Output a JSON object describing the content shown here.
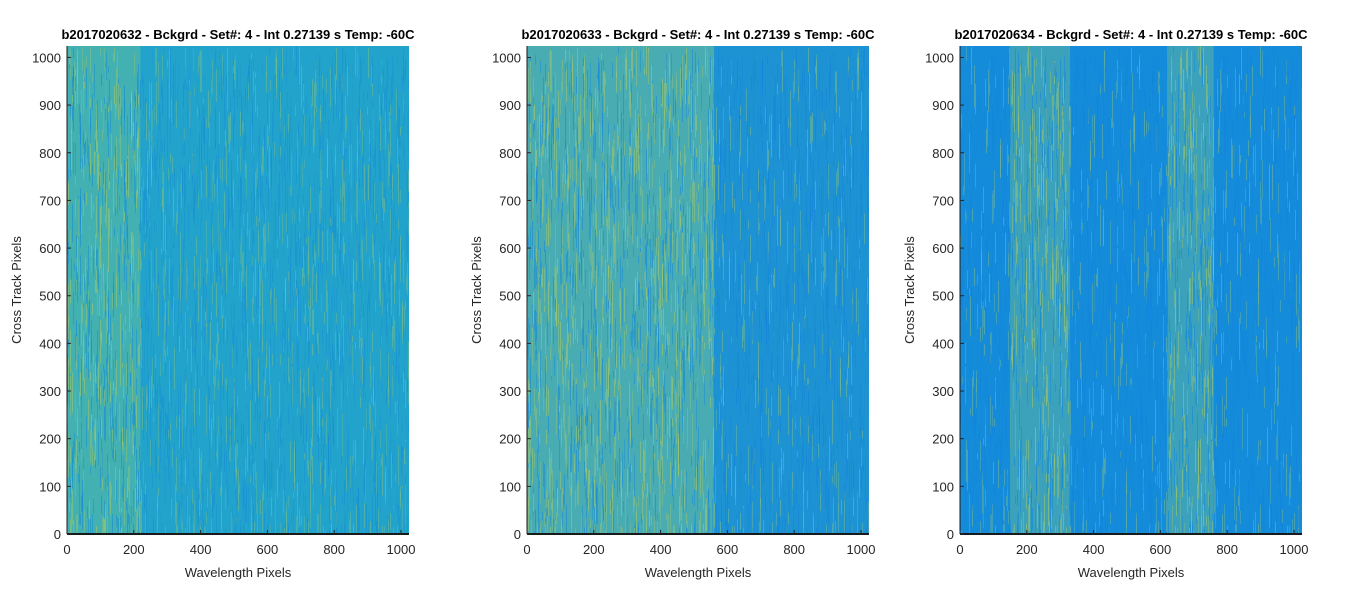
{
  "chart_data": [
    {
      "type": "heatmap",
      "title": "b2017020632 - Bckgrd - Set#: 4 - Int 0.27139 s Temp: -60C",
      "xlabel": "Wavelength Pixels",
      "ylabel": "Cross Track Pixels",
      "xlim": [
        0,
        1024
      ],
      "ylim": [
        0,
        1024
      ],
      "xticks": [
        0,
        200,
        400,
        600,
        800,
        1000
      ],
      "yticks": [
        0,
        100,
        200,
        300,
        400,
        500,
        600,
        700,
        800,
        900,
        1000
      ],
      "colormap": "parula",
      "colors": {
        "base": "#23a8c9",
        "bright": "#b5ce5a",
        "dark": "#0f7fdc"
      },
      "bands": [
        {
          "x_range": [
            0,
            220
          ],
          "level": "brighter"
        },
        {
          "x_range": [
            220,
            1024
          ],
          "level": "medium"
        }
      ]
    },
    {
      "type": "heatmap",
      "title": "b2017020633 - Bckgrd - Set#: 4 - Int 0.27139 s Temp: -60C",
      "xlabel": "Wavelength Pixels",
      "ylabel": "Cross Track Pixels",
      "xlim": [
        0,
        1024
      ],
      "ylim": [
        0,
        1024
      ],
      "xticks": [
        0,
        200,
        400,
        600,
        800,
        1000
      ],
      "yticks": [
        0,
        100,
        200,
        300,
        400,
        500,
        600,
        700,
        800,
        900,
        1000
      ],
      "colormap": "parula",
      "colors": {
        "base": "#2aa3cc",
        "bright": "#b5ce5a",
        "dark": "#0f7fdc"
      },
      "bands": [
        {
          "x_range": [
            0,
            560
          ],
          "level": "brighter"
        },
        {
          "x_range": [
            560,
            1024
          ],
          "level": "darker"
        }
      ]
    },
    {
      "type": "heatmap",
      "title": "b2017020634 - Bckgrd - Set#: 4 - Int 0.27139 s Temp: -60C",
      "xlabel": "Wavelength Pixels",
      "ylabel": "Cross Track Pixels",
      "xlim": [
        0,
        1024
      ],
      "ylim": [
        0,
        1024
      ],
      "xticks": [
        0,
        200,
        400,
        600,
        800,
        1000
      ],
      "yticks": [
        0,
        100,
        200,
        300,
        400,
        500,
        600,
        700,
        800,
        900,
        1000
      ],
      "colormap": "parula",
      "colors": {
        "base": "#1a96d8",
        "bright": "#b5ce5a",
        "dark": "#0f7fdc"
      },
      "bands": [
        {
          "x_range": [
            0,
            150
          ],
          "level": "darker"
        },
        {
          "x_range": [
            150,
            330
          ],
          "level": "brighter"
        },
        {
          "x_range": [
            330,
            620
          ],
          "level": "darker"
        },
        {
          "x_range": [
            620,
            760
          ],
          "level": "brighter"
        },
        {
          "x_range": [
            760,
            1024
          ],
          "level": "darker"
        }
      ]
    }
  ]
}
